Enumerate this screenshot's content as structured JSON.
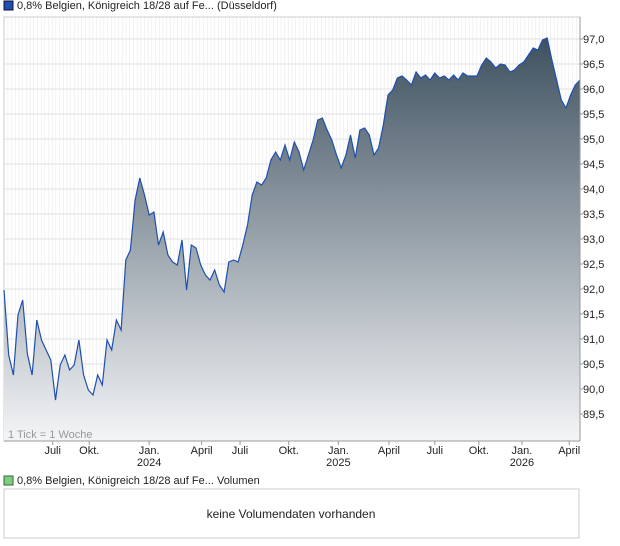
{
  "chart_data": {
    "type": "area",
    "title": "0,8% Belgien, Königreich 18/28 auf Fe... (Düsseldorf)",
    "volume_title": "0,8% Belgien, Königreich 18/28 auf Fe... Volumen",
    "volume_note": "keine Volumendaten vorhanden",
    "tick_note": "1 Tick = 1 Woche",
    "color": "#1f4fae",
    "grid": true,
    "values": [
      91.98,
      90.68,
      90.28,
      91.48,
      91.78,
      90.7,
      90.28,
      91.38,
      90.98,
      90.78,
      90.58,
      89.78,
      90.48,
      90.68,
      90.38,
      90.48,
      90.98,
      90.28,
      89.98,
      89.88,
      90.28,
      90.08,
      90.98,
      90.78,
      91.38,
      91.18,
      92.58,
      92.78,
      93.78,
      94.22,
      93.88,
      93.48,
      93.54,
      92.88,
      93.14,
      92.68,
      92.54,
      92.48,
      92.98,
      91.98,
      92.88,
      92.82,
      92.48,
      92.28,
      92.18,
      92.38,
      92.08,
      91.94,
      92.54,
      92.58,
      92.54,
      92.88,
      93.28,
      93.88,
      94.14,
      94.08,
      94.22,
      94.58,
      94.74,
      94.58,
      94.88,
      94.58,
      94.94,
      94.74,
      94.38,
      94.68,
      94.98,
      95.38,
      95.42,
      95.18,
      94.98,
      94.68,
      94.42,
      94.68,
      95.08,
      94.62,
      95.18,
      95.22,
      95.08,
      94.68,
      94.82,
      95.28,
      95.88,
      95.98,
      96.22,
      96.26,
      96.18,
      96.08,
      96.34,
      96.22,
      96.28,
      96.18,
      96.32,
      96.22,
      96.26,
      96.18,
      96.28,
      96.18,
      96.32,
      96.26,
      96.26,
      96.26,
      96.48,
      96.62,
      96.54,
      96.42,
      96.5,
      96.48,
      96.34,
      96.38,
      96.48,
      96.54,
      96.68,
      96.82,
      96.78,
      96.98,
      97.02,
      96.58,
      96.18,
      95.78,
      95.62,
      95.88,
      96.08,
      96.18
    ],
    "xlim": [
      0,
      123
    ],
    "xticks": [
      {
        "value": 10.4,
        "label": "Juli"
      },
      {
        "value": 18.2,
        "label": "Okt."
      },
      {
        "value": 31,
        "label": "Jan."
      },
      {
        "value": 42.2,
        "label": "April"
      },
      {
        "value": 50.4,
        "label": "Juli"
      },
      {
        "value": 60.8,
        "label": "Okt."
      },
      {
        "value": 71.4,
        "label": "Jan."
      },
      {
        "value": 82.2,
        "label": "April"
      },
      {
        "value": 92,
        "label": "Juli"
      },
      {
        "value": 101.4,
        "label": "Okt."
      },
      {
        "value": 110.6,
        "label": "Jan."
      },
      {
        "value": 120.7,
        "label": "April"
      }
    ],
    "x_year_labels": [
      {
        "value": 31,
        "label": "2024"
      },
      {
        "value": 71.4,
        "label": "2025"
      },
      {
        "value": 110.6,
        "label": "2026"
      }
    ],
    "ylim": [
      88.96,
      97.44
    ],
    "yticks": [
      {
        "value": 89.5,
        "label": "89,5"
      },
      {
        "value": 90,
        "label": "90,0"
      },
      {
        "value": 90.5,
        "label": "90,5"
      },
      {
        "value": 91,
        "label": "91,0"
      },
      {
        "value": 91.5,
        "label": "91,5"
      },
      {
        "value": 92,
        "label": "92,0"
      },
      {
        "value": 92.5,
        "label": "92,5"
      },
      {
        "value": 93,
        "label": "93,0"
      },
      {
        "value": 93.5,
        "label": "93,5"
      },
      {
        "value": 94,
        "label": "94,0"
      },
      {
        "value": 94.5,
        "label": "94,5"
      },
      {
        "value": 95,
        "label": "95,0"
      },
      {
        "value": 95.5,
        "label": "95,5"
      },
      {
        "value": 96,
        "label": "96,0"
      },
      {
        "value": 96.5,
        "label": "96,5"
      },
      {
        "value": 97,
        "label": "97,0"
      }
    ]
  }
}
